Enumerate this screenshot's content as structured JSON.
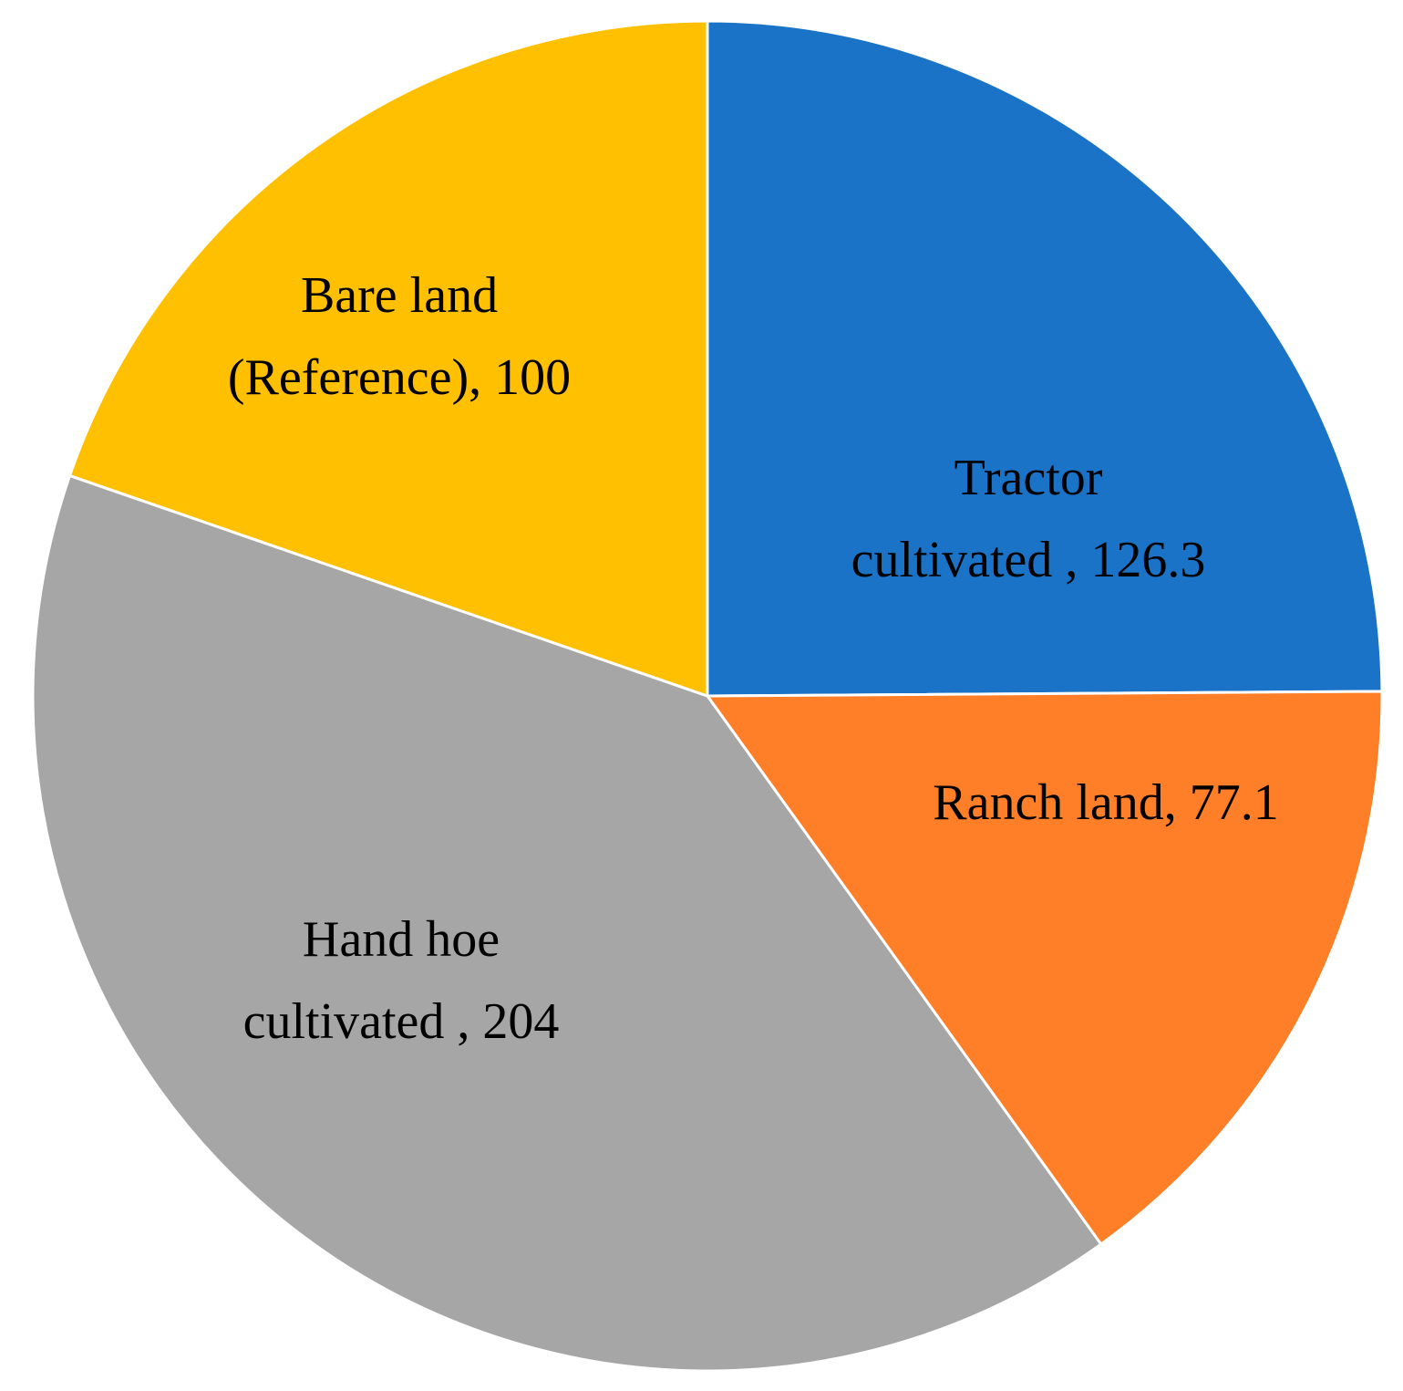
{
  "chart_data": {
    "type": "pie",
    "values": [
      126.3,
      77.1,
      204,
      100
    ],
    "value_labels": [
      [
        "Tractor",
        "cultivated , 126.3"
      ],
      [
        "Ranch land, 77.1"
      ],
      [
        "Hand hoe",
        "cultivated , 204"
      ],
      [
        "Bare land",
        "(Reference), 100"
      ]
    ],
    "colors": [
      "#1a73c6",
      "#fe7f27",
      "#a6a6a6",
      "#fec000"
    ],
    "start": "top",
    "direction": "clockwise"
  }
}
